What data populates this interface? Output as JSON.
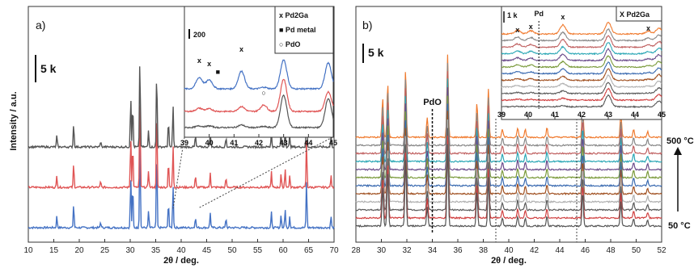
{
  "chart_data": [
    {
      "type": "line",
      "panel_label": "a)",
      "xlabel": "2θ / deg.",
      "ylabel": "Intensity / a.u.",
      "xlim": [
        10,
        70
      ],
      "x_ticks": [
        10,
        15,
        20,
        25,
        30,
        35,
        40,
        45,
        50,
        55,
        60,
        65,
        70
      ],
      "scale_bar": "5 k",
      "series": [
        {
          "color": "#4472c4",
          "offset": 2
        },
        {
          "color": "#e05555",
          "offset": 1
        },
        {
          "color": "#555555",
          "offset": 0
        }
      ],
      "peaks": [
        15.6,
        18.9,
        24.2,
        30.1,
        30.5,
        31.9,
        33.6,
        35.2,
        37.5,
        38.4,
        42.8,
        45.7,
        48.8,
        57.7,
        59.6,
        60.4,
        61.3,
        64.6,
        69.4
      ],
      "peak_heights": [
        0.12,
        0.25,
        0.06,
        0.55,
        0.45,
        0.95,
        0.18,
        0.82,
        0.28,
        0.45,
        0.12,
        0.16,
        0.1,
        0.16,
        0.14,
        0.2,
        0.12,
        0.5,
        0.12
      ],
      "inset": {
        "xlim": [
          39,
          45
        ],
        "x_ticks": [
          39,
          40,
          41,
          42,
          43,
          44,
          45
        ],
        "scale_bar": "200",
        "legend": [
          "x Pd2Ga",
          "■ Pd metal",
          "○ PdO"
        ],
        "markers": [
          {
            "symbol": "x",
            "x": 39.6
          },
          {
            "symbol": "x",
            "x": 40.0
          },
          {
            "symbol": "■",
            "x": 40.35
          },
          {
            "symbol": "x",
            "x": 41.3
          },
          {
            "symbol": "○",
            "x": 42.2
          }
        ]
      }
    },
    {
      "type": "line",
      "panel_label": "b)",
      "xlabel": "2θ / deg.",
      "xlim": [
        28,
        52
      ],
      "x_ticks": [
        28,
        30,
        32,
        34,
        36,
        38,
        40,
        42,
        44,
        46,
        48,
        50,
        52
      ],
      "scale_bar": "5 k",
      "annotation": "PdO",
      "annotation_x": 34.0,
      "temp_top": "500 °C",
      "temp_bottom": "50 °C",
      "series": [
        {
          "color": "#f07a2e"
        },
        {
          "color": "#888888"
        },
        {
          "color": "#c06060"
        },
        {
          "color": "#2ba7b5"
        },
        {
          "color": "#6a4a8a"
        },
        {
          "color": "#7a9a3a"
        },
        {
          "color": "#3a6ab0"
        },
        {
          "color": "#a05020"
        },
        {
          "color": "#b0b0b0"
        },
        {
          "color": "#5a5a5a"
        },
        {
          "color": "#d04040"
        },
        {
          "color": "#555555"
        }
      ],
      "peaks": [
        30.1,
        30.5,
        31.9,
        33.6,
        35.2,
        37.5,
        38.4,
        39.5,
        40.7,
        41.3,
        43.0,
        45.8,
        48.8,
        49.8,
        50.9
      ],
      "peak_heights": [
        0.4,
        0.55,
        0.7,
        0.2,
        0.85,
        0.35,
        0.5,
        0.08,
        0.1,
        0.08,
        0.1,
        0.35,
        0.25,
        0.08,
        0.06
      ],
      "inset": {
        "xlim": [
          39,
          45
        ],
        "x_ticks": [
          39,
          40,
          41,
          42,
          43,
          44,
          45
        ],
        "scale_bar": "1 k",
        "legend": [
          "X Pd2Ga"
        ],
        "annotation": "Pd",
        "annotation_x": 40.4,
        "markers": [
          {
            "symbol": "x",
            "x": 39.6
          },
          {
            "symbol": "x",
            "x": 40.1
          },
          {
            "symbol": "x",
            "x": 41.3
          },
          {
            "symbol": "x",
            "x": 44.5
          }
        ]
      }
    }
  ]
}
